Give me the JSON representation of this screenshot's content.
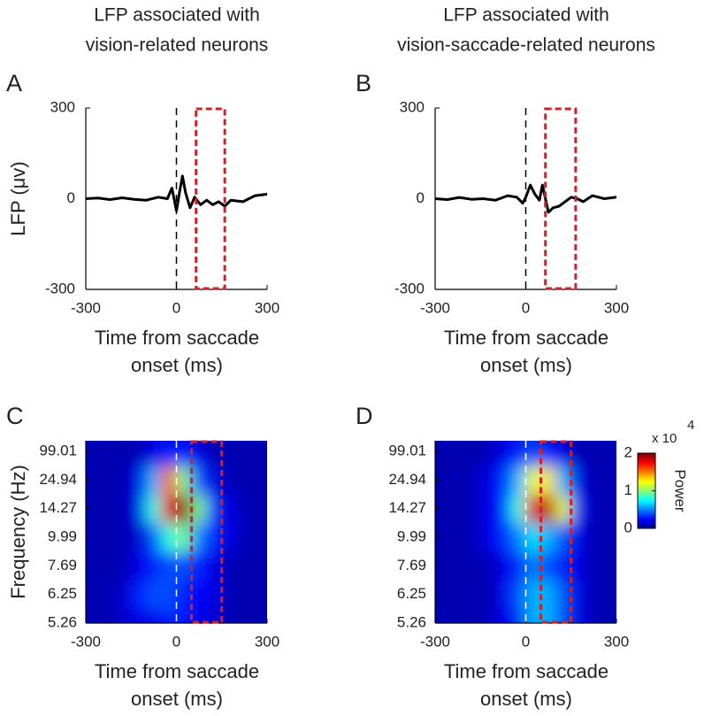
{
  "chart_data": [
    {
      "type": "line",
      "panel": "A",
      "title": [
        "LFP associated with",
        "vision-related neurons"
      ],
      "xlabel": [
        "Time from saccade",
        "onset (ms)"
      ],
      "ylabel": "LFP (μv)",
      "x": [
        -300,
        -260,
        -220,
        -180,
        -140,
        -100,
        -60,
        -30,
        -15,
        0,
        10,
        20,
        30,
        45,
        60,
        80,
        100,
        120,
        140,
        160,
        180,
        220,
        260,
        300
      ],
      "values": [
        0,
        2,
        -3,
        3,
        -2,
        -5,
        5,
        0,
        35,
        -40,
        20,
        75,
        20,
        -30,
        5,
        -20,
        -5,
        -20,
        -10,
        -25,
        -5,
        -10,
        10,
        15
      ],
      "color": "#000000",
      "xlim": [
        -300,
        300
      ],
      "xticks": [
        -300,
        0,
        300
      ],
      "ylim": [
        -300,
        300
      ],
      "yticks": [
        -300,
        0,
        300
      ],
      "onset_x": 0,
      "window": [
        65,
        160
      ],
      "window_color": "#d0202a"
    },
    {
      "type": "line",
      "panel": "B",
      "title": [
        "LFP associated with",
        "vision-saccade-related neurons"
      ],
      "xlabel": [
        "Time from saccade",
        "onset (ms)"
      ],
      "x": [
        -300,
        -260,
        -220,
        -180,
        -140,
        -100,
        -60,
        -30,
        -10,
        0,
        15,
        30,
        45,
        55,
        75,
        90,
        110,
        130,
        150,
        170,
        190,
        220,
        260,
        300
      ],
      "values": [
        0,
        -3,
        4,
        -2,
        0,
        -5,
        10,
        5,
        -15,
        5,
        45,
        15,
        -5,
        45,
        -45,
        -30,
        -25,
        -10,
        5,
        0,
        -10,
        10,
        0,
        5
      ],
      "color": "#000000",
      "xlim": [
        -300,
        300
      ],
      "xticks": [
        -300,
        0,
        300
      ],
      "ylim": [
        -300,
        300
      ],
      "yticks": [
        -300,
        0,
        300
      ],
      "onset_x": 0,
      "window": [
        65,
        165
      ],
      "window_color": "#d0202a"
    },
    {
      "type": "heatmap",
      "panel": "C",
      "xlabel": [
        "Time from saccade",
        "onset (ms)"
      ],
      "ylabel": "Frequency (Hz)",
      "x": [
        -275,
        -225,
        -175,
        -125,
        -75,
        -25,
        25,
        75,
        125,
        175,
        225,
        275
      ],
      "y": [
        5.26,
        6.25,
        7.69,
        9.99,
        14.27,
        24.94,
        99.01
      ],
      "z": [
        [
          0.1,
          0.1,
          0.15,
          0.2,
          0.2,
          0.3,
          0.3,
          0.2,
          0.15,
          0.1,
          0.1,
          0.1
        ],
        [
          0.1,
          0.1,
          0.15,
          0.3,
          0.4,
          0.4,
          0.3,
          0.25,
          0.2,
          0.1,
          0.1,
          0.1
        ],
        [
          0.1,
          0.1,
          0.1,
          0.2,
          0.3,
          0.4,
          0.4,
          0.3,
          0.2,
          0.1,
          0.1,
          0.1
        ],
        [
          0.1,
          0.1,
          0.1,
          0.15,
          0.4,
          0.8,
          1.0,
          0.5,
          0.3,
          0.2,
          0.1,
          0.1
        ],
        [
          0.1,
          0.1,
          0.1,
          0.2,
          0.8,
          1.8,
          2.0,
          1.0,
          0.3,
          0.2,
          0.1,
          0.1
        ],
        [
          0.1,
          0.1,
          0.1,
          0.2,
          0.6,
          1.6,
          1.0,
          0.4,
          0.2,
          0.1,
          0.1,
          0.1
        ],
        [
          0.1,
          0.1,
          0.1,
          0.1,
          0.2,
          0.3,
          0.3,
          0.2,
          0.1,
          0.1,
          0.1,
          0.1
        ]
      ],
      "xlim": [
        -300,
        300
      ],
      "xticks": [
        -300,
        0,
        300
      ],
      "zlim": [
        0,
        2
      ],
      "onset_x": 0,
      "window": [
        50,
        150
      ],
      "window_color": "#d0202a"
    },
    {
      "type": "heatmap",
      "panel": "D",
      "xlabel": [
        "Time from saccade",
        "onset (ms)"
      ],
      "x": [
        -275,
        -225,
        -175,
        -125,
        -75,
        -25,
        25,
        75,
        125,
        175,
        225,
        275
      ],
      "y": [
        5.26,
        6.25,
        7.69,
        9.99,
        14.27,
        24.94,
        99.01
      ],
      "z": [
        [
          0.1,
          0.1,
          0.1,
          0.1,
          0.2,
          0.3,
          0.6,
          0.6,
          0.4,
          0.2,
          0.1,
          0.1
        ],
        [
          0.1,
          0.1,
          0.1,
          0.1,
          0.2,
          0.4,
          0.6,
          0.6,
          0.4,
          0.2,
          0.1,
          0.1
        ],
        [
          0.1,
          0.1,
          0.1,
          0.1,
          0.2,
          0.3,
          0.5,
          0.4,
          0.3,
          0.2,
          0.1,
          0.1
        ],
        [
          0.1,
          0.1,
          0.1,
          0.2,
          0.3,
          0.5,
          0.7,
          0.6,
          0.4,
          0.2,
          0.1,
          0.1
        ],
        [
          0.1,
          0.1,
          0.1,
          0.2,
          0.3,
          0.8,
          1.8,
          1.9,
          1.2,
          0.3,
          0.1,
          0.1
        ],
        [
          0.1,
          0.1,
          0.1,
          0.2,
          0.3,
          0.6,
          1.2,
          1.3,
          0.6,
          0.2,
          0.1,
          0.1
        ],
        [
          0.1,
          0.1,
          0.1,
          0.1,
          0.2,
          0.3,
          0.4,
          0.3,
          0.2,
          0.1,
          0.1,
          0.1
        ]
      ],
      "xlim": [
        -300,
        300
      ],
      "xticks": [
        -300,
        0,
        300
      ],
      "zlim": [
        0,
        2
      ],
      "onset_x": 0,
      "window": [
        50,
        150
      ],
      "window_color": "#d0202a",
      "colorbar": {
        "label": "Power",
        "ticks": [
          0,
          1,
          2
        ],
        "multiplier": "x 10",
        "exponent": "4"
      }
    }
  ]
}
